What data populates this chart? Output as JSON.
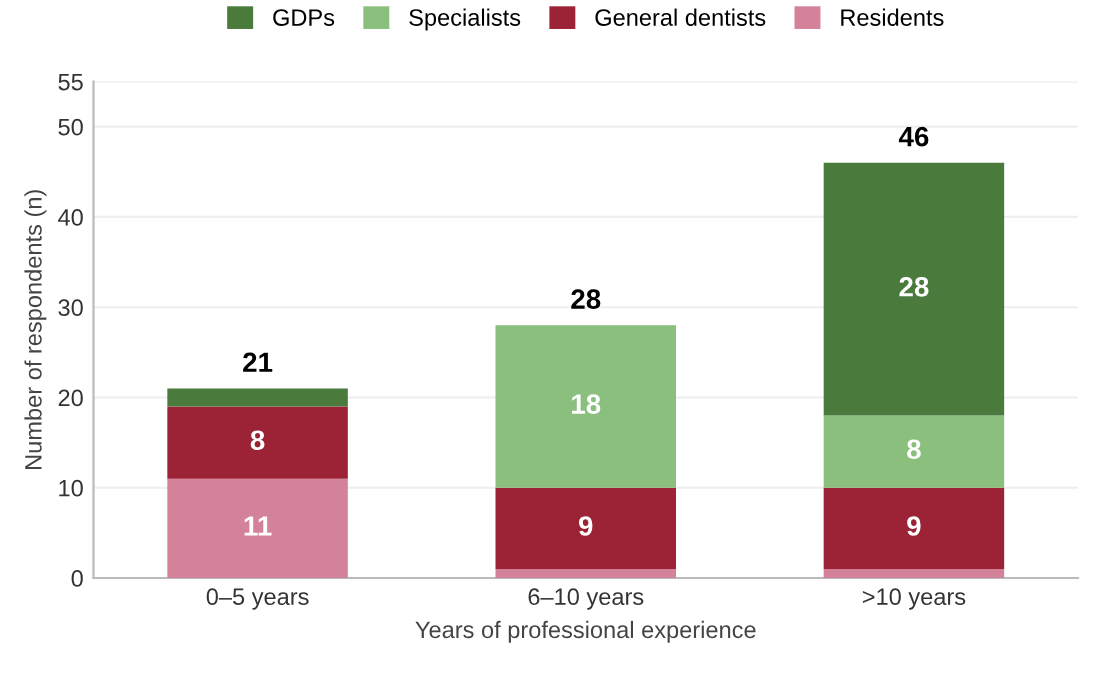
{
  "chart_data": {
    "type": "bar",
    "stacked": true,
    "xlabel": "Years of professional experience",
    "ylabel": "Number of respondents (n)",
    "categories": [
      "0–5 years",
      "6–10 years",
      ">10 years"
    ],
    "series": [
      {
        "name": "Residents",
        "color": "#d4829a",
        "values": [
          11,
          1,
          1
        ],
        "value_labels": [
          "11",
          null,
          null
        ]
      },
      {
        "name": "General dentists",
        "color": "#9c2236",
        "values": [
          8,
          9,
          9
        ],
        "value_labels": [
          "8",
          "9",
          "9"
        ]
      },
      {
        "name": "Specialists",
        "color": "#8abf7e",
        "values": [
          0,
          18,
          8
        ],
        "value_labels": [
          null,
          "18",
          "8"
        ]
      },
      {
        "name": "GDPs",
        "color": "#4a7b3d",
        "values": [
          2,
          0,
          28
        ],
        "value_labels": [
          null,
          null,
          "28"
        ]
      }
    ],
    "totals": [
      "21",
      "28",
      "46"
    ],
    "ylim": [
      0,
      55
    ],
    "yticks": [
      0,
      10,
      20,
      30,
      40,
      50,
      55
    ],
    "grid": "y",
    "legend": "top"
  }
}
